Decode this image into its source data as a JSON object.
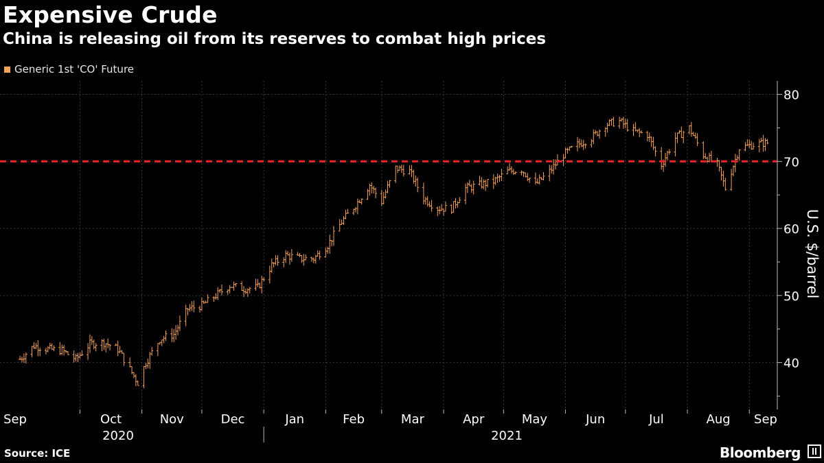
{
  "header": {
    "title": "Expensive Crude",
    "subtitle": "China is releasing oil from its reserves to combat high prices"
  },
  "footer": {
    "source": "Source: ICE",
    "brand": "Bloomberg"
  },
  "colors": {
    "series": "#f7a35c",
    "reference_line": "#e8262d",
    "background": "#000000",
    "grid": "#3a3a3a"
  },
  "chart_data": {
    "type": "line",
    "ylabel": "U.S. $/barrel",
    "ylim": [
      33,
      82
    ],
    "yticks": [
      40,
      50,
      60,
      70,
      80
    ],
    "reference_line": 70,
    "x_month_labels": [
      "Sep",
      "Oct",
      "Nov",
      "Dec",
      "Jan",
      "Feb",
      "Mar",
      "Apr",
      "May",
      "Jun",
      "Jul",
      "Aug",
      "Sep"
    ],
    "x_year_labels": [
      "2020",
      "2021"
    ],
    "legend_position": "top-left",
    "grid": true,
    "series": [
      {
        "name": "Generic 1st 'CO' Future",
        "x": [
          "2020-09-01",
          "2020-09-08",
          "2020-09-15",
          "2020-09-22",
          "2020-09-29",
          "2020-10-06",
          "2020-10-13",
          "2020-10-20",
          "2020-10-27",
          "2020-10-30",
          "2020-11-03",
          "2020-11-10",
          "2020-11-17",
          "2020-11-24",
          "2020-12-01",
          "2020-12-08",
          "2020-12-15",
          "2020-12-22",
          "2020-12-29",
          "2021-01-05",
          "2021-01-12",
          "2021-01-19",
          "2021-01-26",
          "2021-02-02",
          "2021-02-09",
          "2021-02-16",
          "2021-02-23",
          "2021-03-01",
          "2021-03-08",
          "2021-03-15",
          "2021-03-22",
          "2021-03-29",
          "2021-04-05",
          "2021-04-12",
          "2021-04-19",
          "2021-04-26",
          "2021-05-03",
          "2021-05-10",
          "2021-05-17",
          "2021-05-24",
          "2021-05-31",
          "2021-06-07",
          "2021-06-14",
          "2021-06-21",
          "2021-06-28",
          "2021-07-05",
          "2021-07-12",
          "2021-07-19",
          "2021-07-26",
          "2021-08-02",
          "2021-08-09",
          "2021-08-16",
          "2021-08-20",
          "2021-08-27",
          "2021-09-03",
          "2021-09-10"
        ],
        "values": [
          40.5,
          42.5,
          42.0,
          41.8,
          40.5,
          42.8,
          43.0,
          42.0,
          38.5,
          37.0,
          40.0,
          43.5,
          44.2,
          48.0,
          48.5,
          50.0,
          51.5,
          51.0,
          51.2,
          54.5,
          56.0,
          55.5,
          55.5,
          57.5,
          61.0,
          63.5,
          66.5,
          64.0,
          69.0,
          68.5,
          64.5,
          63.0,
          63.0,
          66.0,
          66.5,
          67.0,
          68.5,
          68.8,
          66.5,
          68.5,
          71.0,
          72.5,
          73.5,
          75.5,
          76.0,
          74.5,
          74.0,
          69.5,
          73.5,
          75.0,
          71.0,
          69.5,
          66.0,
          72.0,
          72.5,
          72.8
        ]
      }
    ]
  }
}
